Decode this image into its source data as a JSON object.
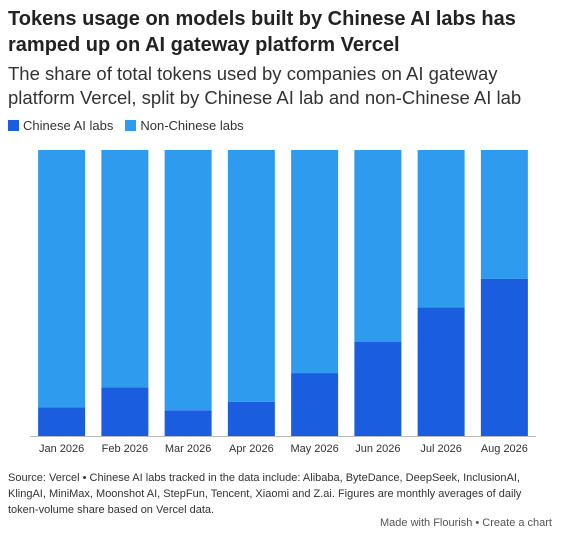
{
  "chart_data": {
    "type": "stacked-bar-100",
    "title": "Tokens usage on models built by Chinese AI labs has ramped up on AI gateway platform Vercel",
    "subtitle": "The share of total tokens used by companies on AI gateway platform Vercel, split by Chinese AI lab and non-Chinese AI lab",
    "categories": [
      "Jan 2026",
      "Feb 2026",
      "Mar 2026",
      "Apr 2026",
      "May 2026",
      "Jun 2026",
      "Jul 2026",
      "Aug 2026"
    ],
    "series": [
      {
        "name": "Chinese AI labs",
        "color": "#1a5ddf",
        "values": [
          10,
          17,
          9,
          12,
          22,
          33,
          45,
          55
        ]
      },
      {
        "name": "Non-Chinese labs",
        "color": "#2f9bef",
        "values": [
          90,
          83,
          91,
          88,
          78,
          67,
          55,
          45
        ]
      }
    ],
    "source": "Source: Vercel • Chinese AI labs tracked in the data include: Alibaba, ByteDance, DeepSeek, InclusionAI, KlingAI, MiniMax, Moonshot AI, StepFun, Tencent, Xiaomi and Z.ai. Figures are monthly averages of daily token-volume share based on Vercel data.",
    "credit": "Made with Flourish • Create a chart"
  }
}
